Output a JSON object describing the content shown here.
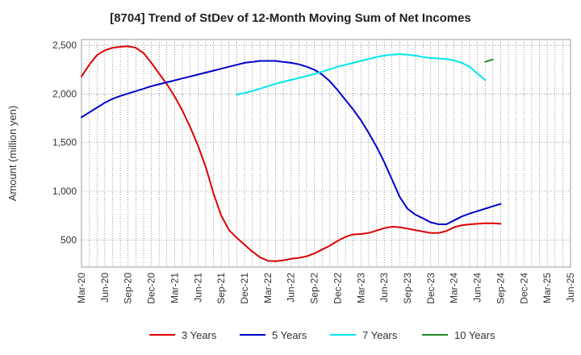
{
  "chart_data": {
    "type": "line",
    "title": "[8704]  Trend of StDev of 12-Month Moving Sum of Net Incomes",
    "ylabel": "Amount (million yen)",
    "xlabel": "",
    "ylim": [
      220,
      2560
    ],
    "yticks": [
      500,
      1000,
      1500,
      2000,
      2500
    ],
    "ytick_labels": [
      "500",
      "1,000",
      "1,500",
      "2,000",
      "2,500"
    ],
    "xticks": [
      "Mar-20",
      "Jun-20",
      "Sep-20",
      "Dec-20",
      "Mar-21",
      "Jun-21",
      "Sep-21",
      "Dec-21",
      "Mar-22",
      "Jun-22",
      "Sep-22",
      "Dec-22",
      "Mar-23",
      "Jun-23",
      "Sep-23",
      "Dec-23",
      "Mar-24",
      "Jun-24",
      "Sep-24",
      "Dec-24",
      "Mar-25",
      "Jun-25"
    ],
    "grid": true,
    "legend_position": "bottom",
    "series": [
      {
        "name": "3 Years",
        "color": "#dd0000",
        "points": [
          [
            0,
            2180
          ],
          [
            1,
            2300
          ],
          [
            2,
            2400
          ],
          [
            3,
            2450
          ],
          [
            4,
            2475
          ],
          [
            5,
            2485
          ],
          [
            6,
            2490
          ],
          [
            7,
            2475
          ],
          [
            8,
            2420
          ],
          [
            9,
            2320
          ],
          [
            10,
            2210
          ],
          [
            11,
            2100
          ],
          [
            12,
            1975
          ],
          [
            13,
            1830
          ],
          [
            14,
            1660
          ],
          [
            15,
            1470
          ],
          [
            16,
            1250
          ],
          [
            17,
            980
          ],
          [
            18,
            750
          ],
          [
            19,
            600
          ],
          [
            20,
            520
          ],
          [
            21,
            450
          ],
          [
            22,
            380
          ],
          [
            23,
            320
          ],
          [
            24,
            285
          ],
          [
            25,
            280
          ],
          [
            26,
            290
          ],
          [
            27,
            305
          ],
          [
            28,
            315
          ],
          [
            29,
            330
          ],
          [
            30,
            360
          ],
          [
            31,
            400
          ],
          [
            32,
            440
          ],
          [
            33,
            490
          ],
          [
            34,
            530
          ],
          [
            35,
            555
          ],
          [
            36,
            560
          ],
          [
            37,
            570
          ],
          [
            38,
            595
          ],
          [
            39,
            620
          ],
          [
            40,
            635
          ],
          [
            41,
            630
          ],
          [
            42,
            615
          ],
          [
            43,
            600
          ],
          [
            44,
            585
          ],
          [
            45,
            570
          ],
          [
            46,
            570
          ],
          [
            47,
            590
          ],
          [
            48,
            630
          ],
          [
            49,
            650
          ],
          [
            50,
            660
          ],
          [
            51,
            665
          ],
          [
            52,
            670
          ],
          [
            53,
            670
          ],
          [
            54,
            665
          ]
        ]
      },
      {
        "name": "5 Years",
        "color": "#0000cc",
        "points": [
          [
            0,
            1760
          ],
          [
            1,
            1810
          ],
          [
            2,
            1860
          ],
          [
            3,
            1910
          ],
          [
            4,
            1950
          ],
          [
            5,
            1980
          ],
          [
            6,
            2005
          ],
          [
            7,
            2030
          ],
          [
            8,
            2055
          ],
          [
            9,
            2080
          ],
          [
            10,
            2100
          ],
          [
            11,
            2120
          ],
          [
            12,
            2140
          ],
          [
            13,
            2160
          ],
          [
            14,
            2180
          ],
          [
            15,
            2200
          ],
          [
            16,
            2220
          ],
          [
            17,
            2240
          ],
          [
            18,
            2260
          ],
          [
            19,
            2280
          ],
          [
            20,
            2300
          ],
          [
            21,
            2320
          ],
          [
            22,
            2330
          ],
          [
            23,
            2340
          ],
          [
            24,
            2340
          ],
          [
            25,
            2340
          ],
          [
            26,
            2330
          ],
          [
            27,
            2320
          ],
          [
            28,
            2305
          ],
          [
            29,
            2280
          ],
          [
            30,
            2250
          ],
          [
            31,
            2200
          ],
          [
            32,
            2130
          ],
          [
            33,
            2040
          ],
          [
            34,
            1940
          ],
          [
            35,
            1840
          ],
          [
            36,
            1730
          ],
          [
            37,
            1600
          ],
          [
            38,
            1460
          ],
          [
            39,
            1300
          ],
          [
            40,
            1120
          ],
          [
            41,
            940
          ],
          [
            42,
            820
          ],
          [
            43,
            760
          ],
          [
            44,
            720
          ],
          [
            45,
            680
          ],
          [
            46,
            660
          ],
          [
            47,
            660
          ],
          [
            48,
            700
          ],
          [
            49,
            740
          ],
          [
            50,
            770
          ],
          [
            51,
            795
          ],
          [
            52,
            820
          ],
          [
            53,
            845
          ],
          [
            54,
            870
          ]
        ]
      },
      {
        "name": "7 Years",
        "color": "#00e5ee",
        "points": [
          [
            20,
            1995
          ],
          [
            21,
            2010
          ],
          [
            22,
            2030
          ],
          [
            23,
            2055
          ],
          [
            24,
            2080
          ],
          [
            25,
            2105
          ],
          [
            26,
            2125
          ],
          [
            27,
            2145
          ],
          [
            28,
            2165
          ],
          [
            29,
            2185
          ],
          [
            30,
            2205
          ],
          [
            31,
            2230
          ],
          [
            32,
            2255
          ],
          [
            33,
            2280
          ],
          [
            34,
            2300
          ],
          [
            35,
            2320
          ],
          [
            36,
            2340
          ],
          [
            37,
            2360
          ],
          [
            38,
            2380
          ],
          [
            39,
            2395
          ],
          [
            40,
            2405
          ],
          [
            41,
            2410
          ],
          [
            42,
            2405
          ],
          [
            43,
            2395
          ],
          [
            44,
            2380
          ],
          [
            45,
            2370
          ],
          [
            46,
            2365
          ],
          [
            47,
            2360
          ],
          [
            48,
            2345
          ],
          [
            49,
            2320
          ],
          [
            50,
            2280
          ],
          [
            51,
            2210
          ],
          [
            52,
            2145
          ]
        ]
      },
      {
        "name": "10 Years",
        "color": "#228B22",
        "points": [
          [
            52,
            2330
          ],
          [
            53,
            2355
          ]
        ]
      }
    ]
  }
}
